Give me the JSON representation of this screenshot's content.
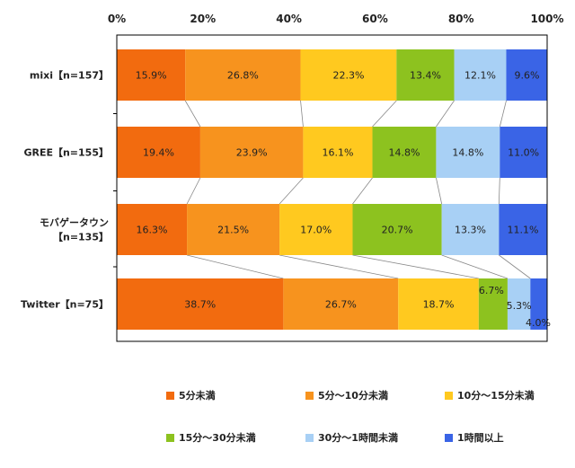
{
  "chart_data": {
    "type": "bar",
    "orientation": "horizontal",
    "stacked": true,
    "grid": false,
    "legend_position": "bottom",
    "xlim": [
      0,
      100
    ],
    "ticks": [
      "0%",
      "20%",
      "40%",
      "60%",
      "80%",
      "100%"
    ],
    "categories": [
      [
        "mixi【n=157】"
      ],
      [
        "GREE【n=155】"
      ],
      [
        "モバゲータウン",
        "【n=135】"
      ],
      [
        "Twitter【n=75】"
      ]
    ],
    "series": [
      {
        "name": "5分未満",
        "color": "#f26b0f",
        "values": [
          15.9,
          19.4,
          16.3,
          38.7
        ],
        "labels": [
          "15.9%",
          "19.4%",
          "16.3%",
          "38.7%"
        ]
      },
      {
        "name": "5分～10分未満",
        "color": "#f7931e",
        "values": [
          26.8,
          23.9,
          21.5,
          26.7
        ],
        "labels": [
          "26.8%",
          "23.9%",
          "21.5%",
          "26.7%"
        ]
      },
      {
        "name": "10分～15分未満",
        "color": "#ffc91f",
        "values": [
          22.3,
          16.1,
          17.0,
          18.7
        ],
        "labels": [
          "22.3%",
          "16.1%",
          "17.0%",
          "18.7%"
        ]
      },
      {
        "name": "15分～30分未満",
        "color": "#8dc21f",
        "values": [
          13.4,
          14.8,
          20.7,
          6.7
        ],
        "labels": [
          "13.4%",
          "14.8%",
          "20.7%",
          "6.7%"
        ]
      },
      {
        "name": "30分～1時間未満",
        "color": "#a8d0f5",
        "values": [
          12.1,
          14.8,
          13.3,
          5.3
        ],
        "labels": [
          "12.1%",
          "14.8%",
          "13.3%",
          "5.3%"
        ]
      },
      {
        "name": "1時間以上",
        "color": "#3a64e6",
        "values": [
          9.6,
          11.0,
          11.1,
          4.0
        ],
        "labels": [
          "9.6%",
          "11.0%",
          "11.1%",
          "4.0%"
        ]
      }
    ]
  }
}
